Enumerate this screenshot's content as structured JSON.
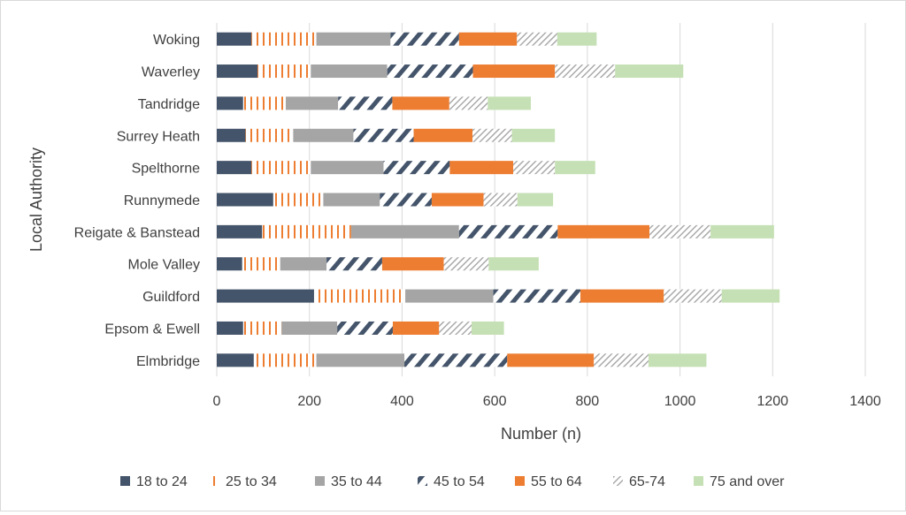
{
  "chart_data": {
    "type": "bar",
    "orientation": "horizontal",
    "stacked": true,
    "xlabel": "Number (n)",
    "ylabel": "Local Authority",
    "xlim": [
      0,
      1400
    ],
    "xticks": [
      "0",
      "200",
      "400",
      "600",
      "800",
      "1000",
      "1200",
      "1400"
    ],
    "grid": "vertical",
    "legend_position": "bottom",
    "categories": [
      "Elmbridge",
      "Epsom & Ewell",
      "Guildford",
      "Mole Valley",
      "Reigate & Banstead",
      "Runnymede",
      "Spelthorne",
      "Surrey Heath",
      "Tandridge",
      "Waverley",
      "Woking"
    ],
    "series": [
      {
        "name": "18 to 24",
        "color": "#44546a",
        "pattern": "solid",
        "values": [
          80,
          57,
          210,
          55,
          98,
          122,
          75,
          62,
          57,
          88,
          75
        ]
      },
      {
        "name": "25 to 34",
        "color": "#ed7d31",
        "pattern": "vertical-lines",
        "values": [
          135,
          83,
          197,
          82,
          192,
          108,
          128,
          103,
          92,
          115,
          140
        ]
      },
      {
        "name": "35 to 44",
        "color": "#a5a5a5",
        "pattern": "solid",
        "values": [
          190,
          120,
          190,
          100,
          233,
          122,
          157,
          130,
          113,
          165,
          160
        ]
      },
      {
        "name": "45 to 54",
        "color": "#44546a",
        "pattern": "diagonal-bold",
        "values": [
          222,
          120,
          188,
          120,
          213,
          112,
          143,
          130,
          117,
          185,
          148
        ]
      },
      {
        "name": "55 to 64",
        "color": "#ed7d31",
        "pattern": "solid",
        "values": [
          187,
          100,
          180,
          133,
          198,
          112,
          137,
          127,
          123,
          177,
          125
        ]
      },
      {
        "name": "65-74",
        "color": "#a5a5a5",
        "pattern": "diagonal-light",
        "values": [
          118,
          70,
          125,
          97,
          132,
          73,
          90,
          85,
          83,
          130,
          87
        ]
      },
      {
        "name": "75 and over",
        "color": "#c5e0b4",
        "pattern": "solid",
        "values": [
          125,
          70,
          125,
          108,
          137,
          77,
          87,
          93,
          93,
          147,
          85
        ]
      }
    ]
  }
}
